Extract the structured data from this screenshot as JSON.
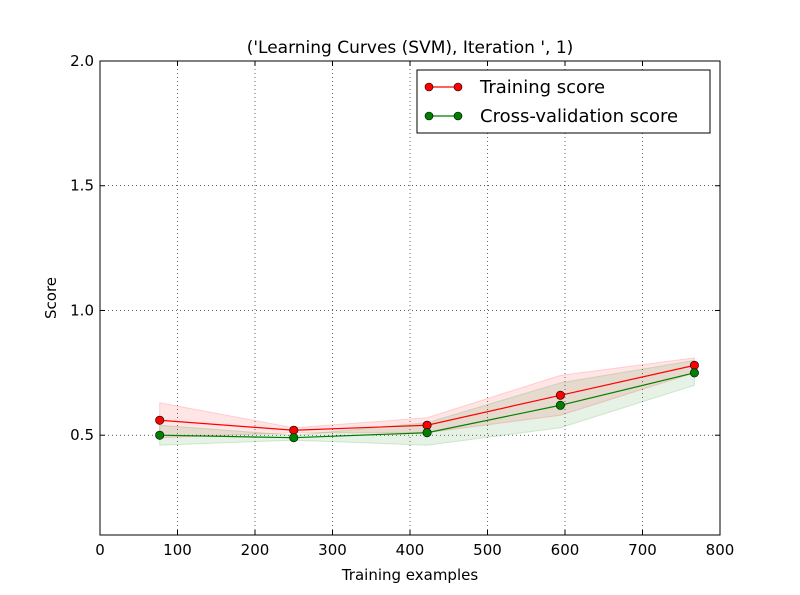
{
  "chart_data": {
    "type": "line",
    "title": "('Learning Curves (SVM), Iteration ', 1)",
    "xlabel": "Training examples",
    "ylabel": "Score",
    "xlim": [
      0,
      800
    ],
    "ylim": [
      0.1,
      2.0
    ],
    "xticks": [
      0,
      100,
      200,
      300,
      400,
      500,
      600,
      700,
      800
    ],
    "yticks": [
      0.5,
      1.0,
      1.5,
      2.0
    ],
    "xtick_labels": [
      "0",
      "100",
      "200",
      "300",
      "400",
      "500",
      "600",
      "700",
      "800"
    ],
    "ytick_labels": [
      "0.5",
      "1.0",
      "1.5",
      "2.0"
    ],
    "grid": true,
    "legend_position": "top-right",
    "x": [
      77,
      250,
      422,
      594,
      767
    ],
    "series": [
      {
        "name": "Training score",
        "color": "#ff0000",
        "fill_color": "#ff0000",
        "values": [
          0.56,
          0.52,
          0.54,
          0.66,
          0.78
        ],
        "band_upper": [
          0.63,
          0.53,
          0.57,
          0.74,
          0.81
        ],
        "band_lower": [
          0.49,
          0.51,
          0.51,
          0.58,
          0.75
        ]
      },
      {
        "name": "Cross-validation score",
        "color": "#008000",
        "fill_color": "#008000",
        "values": [
          0.5,
          0.49,
          0.51,
          0.62,
          0.75
        ],
        "band_upper": [
          0.54,
          0.5,
          0.55,
          0.71,
          0.8
        ],
        "band_lower": [
          0.46,
          0.48,
          0.46,
          0.53,
          0.7
        ]
      }
    ]
  }
}
